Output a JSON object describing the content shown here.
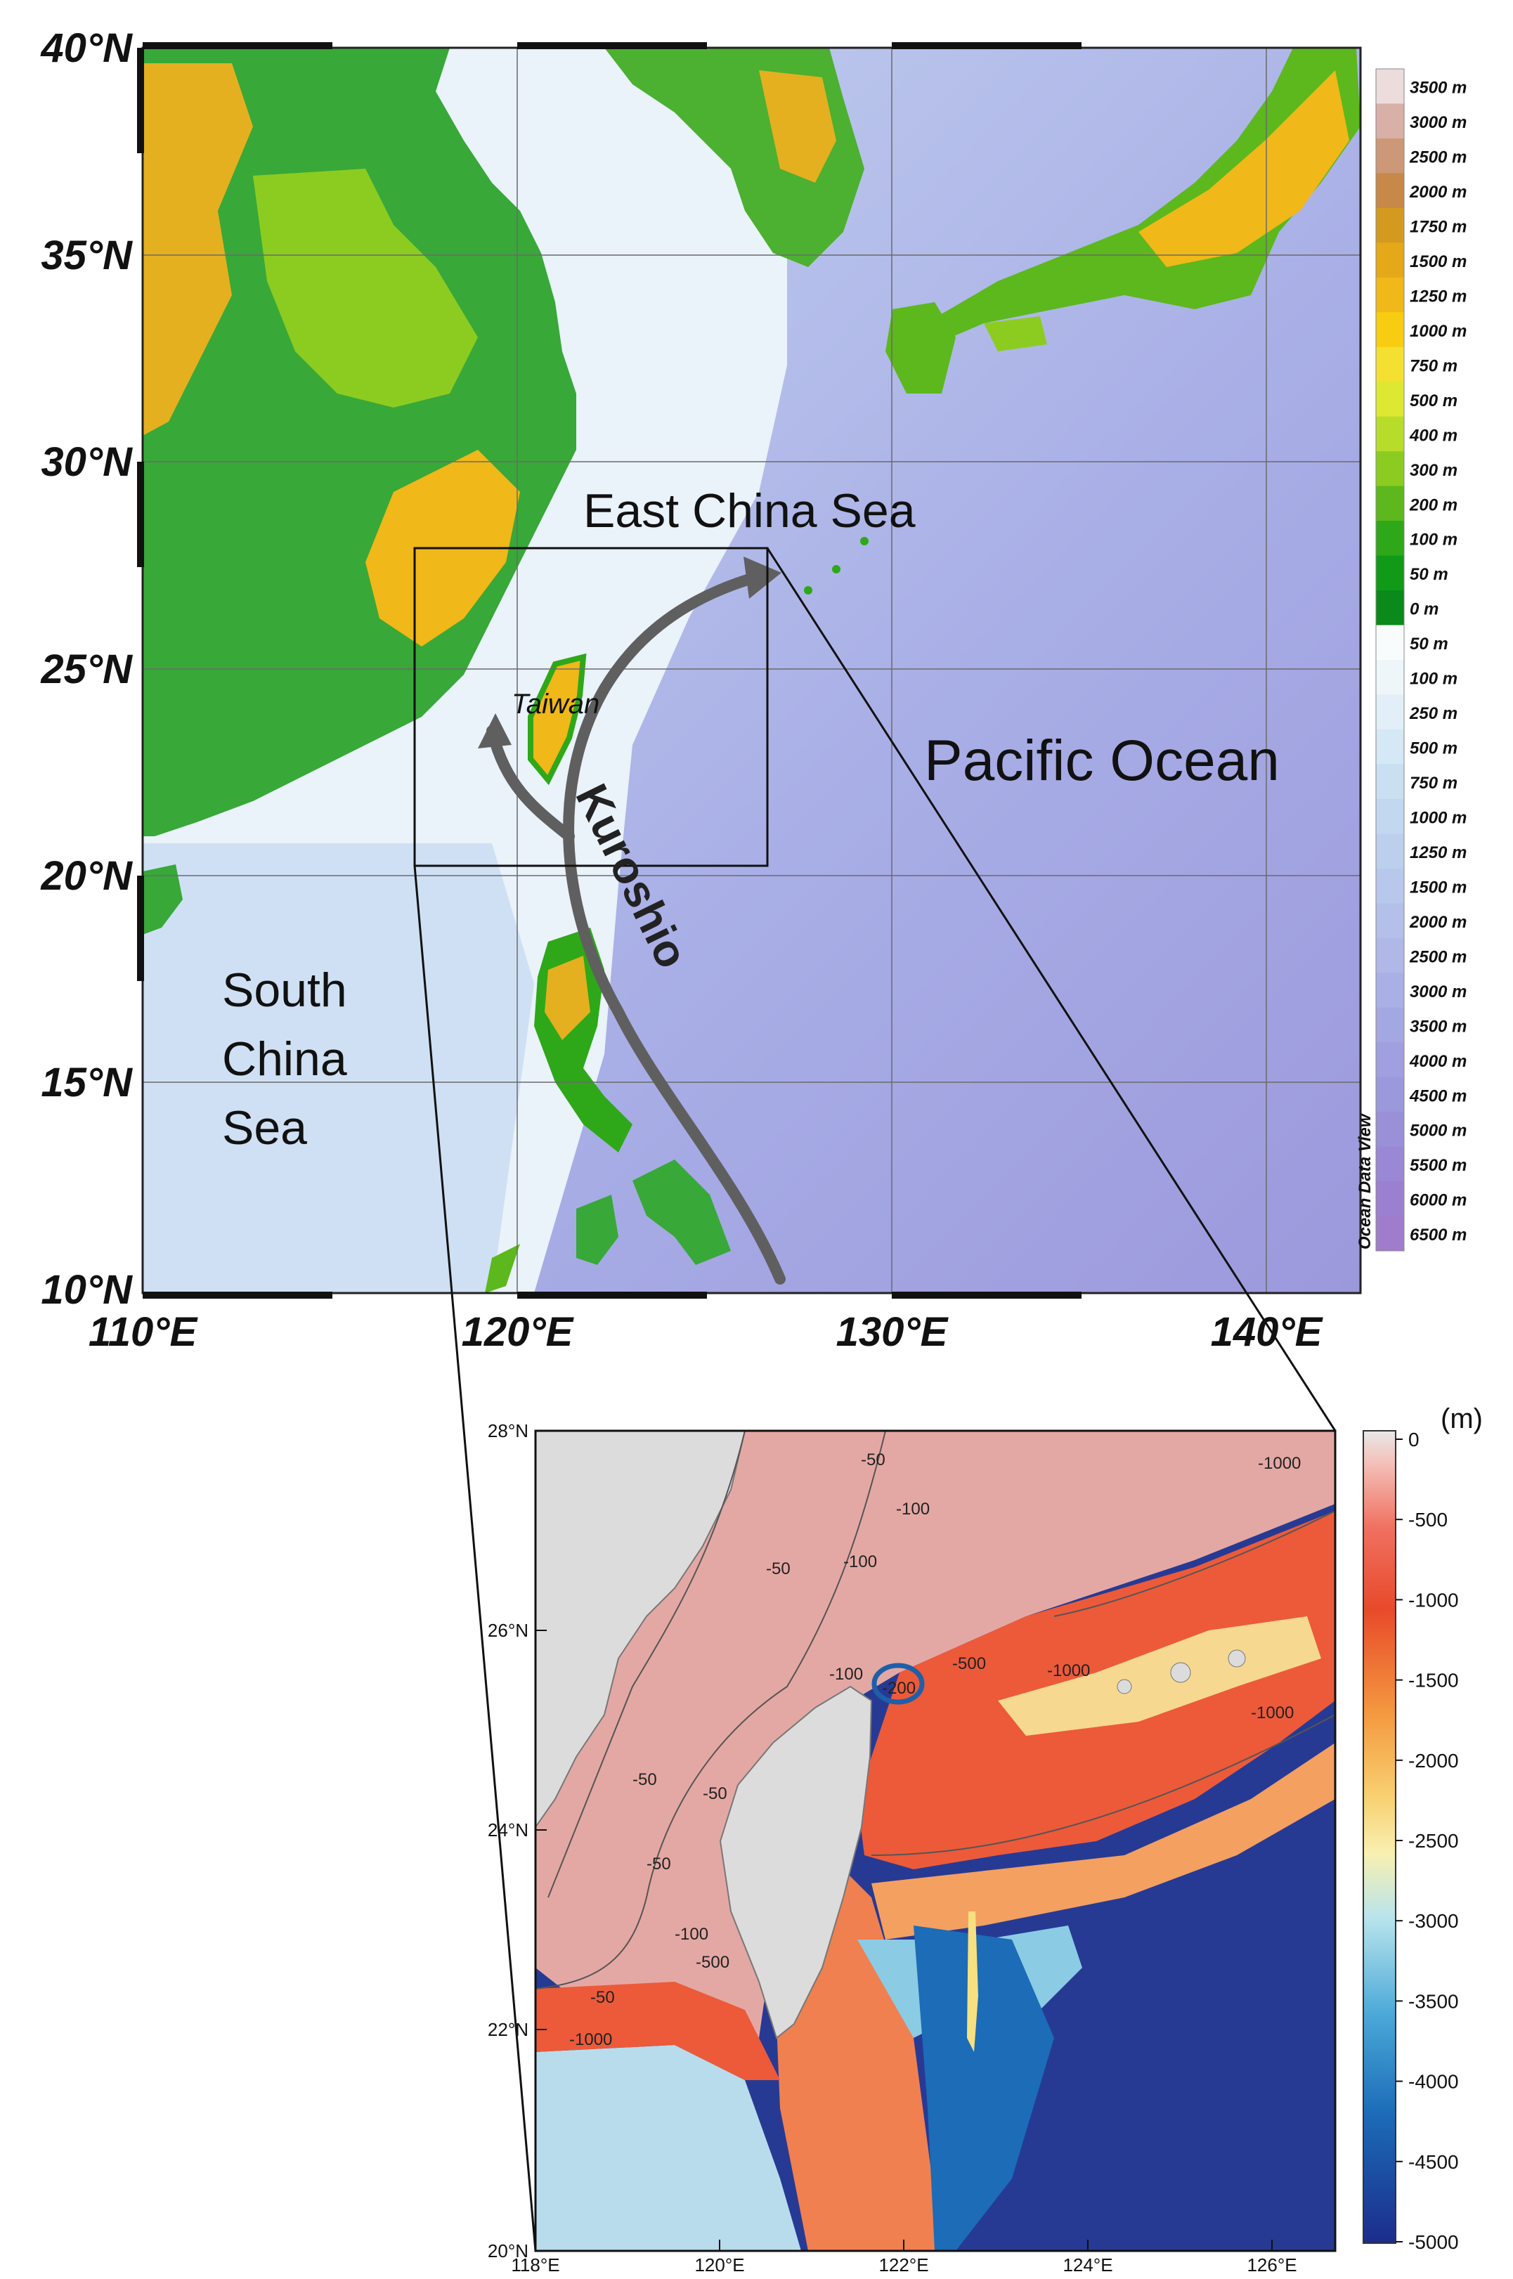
{
  "top_map": {
    "lat_labels": [
      "40°N",
      "35°N",
      "30°N",
      "25°N",
      "20°N",
      "15°N",
      "10°N"
    ],
    "lon_labels": [
      "110°E",
      "120°E",
      "130°E",
      "140°E"
    ],
    "labels": {
      "east_china_sea": "East China Sea",
      "pacific_ocean": "Pacific Ocean",
      "south_china_sea": [
        "South",
        "China",
        "Sea"
      ],
      "taiwan": "Taiwan",
      "kuroshio": "Kuroshio"
    },
    "colorbar_labels": [
      "3500 m",
      "3000 m",
      "2500 m",
      "2000 m",
      "1750 m",
      "1500 m",
      "1250 m",
      "1000 m",
      "750 m",
      "500 m",
      "400 m",
      "300 m",
      "200 m",
      "100 m",
      "50 m",
      "0 m",
      "50 m",
      "100 m",
      "250 m",
      "500 m",
      "750 m",
      "1000 m",
      "1250 m",
      "1500 m",
      "2000 m",
      "2500 m",
      "3000 m",
      "3500 m",
      "4000 m",
      "4500 m",
      "5000 m",
      "5500 m",
      "6000 m",
      "6500 m"
    ],
    "colorbar_colors": [
      "#ecdcdc",
      "#d8b0a8",
      "#cc9878",
      "#c88848",
      "#d49a20",
      "#e4a818",
      "#f0b818",
      "#f8cc10",
      "#f4e030",
      "#dde832",
      "#b8dc2a",
      "#8ccc20",
      "#5cb81c",
      "#2ea818",
      "#119a18",
      "#0a8a1a",
      "#f8fcfc",
      "#eef6fa",
      "#e2eff8",
      "#d4e8f6",
      "#c8e0f2",
      "#c2d8f0",
      "#bcd0ee",
      "#b8c8ec",
      "#b4c0ea",
      "#b0b8e8",
      "#aab0e6",
      "#a4a8e2",
      "#a09fe0",
      "#9c98dc",
      "#9a90d8",
      "#9a88d4",
      "#9c80d0",
      "#a07ccc"
    ],
    "watermark": "Ocean Data View"
  },
  "inset_map": {
    "lat_ticks": [
      "28°N",
      "26°N",
      "24°N",
      "22°N",
      "20°N"
    ],
    "lon_ticks": [
      "118°E",
      "120°E",
      "122°E",
      "124°E",
      "126°E"
    ],
    "unit": "(m)",
    "colorbar_labels": [
      "0",
      "-500",
      "-1000",
      "-1500",
      "-2000",
      "-2500",
      "-3000",
      "-3500",
      "-4000",
      "-4500",
      "-5000"
    ],
    "contour_labels": [
      "-50",
      "-100",
      "-50",
      "-100",
      "-500",
      "-1000",
      "-1000",
      "-200",
      "-100",
      "-50",
      "-50",
      "-50",
      "-100",
      "-500",
      "-50",
      "-1000",
      "-1000"
    ]
  }
}
